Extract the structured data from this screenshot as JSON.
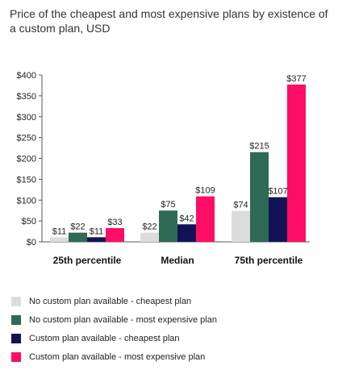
{
  "chart_data": {
    "type": "bar",
    "title": "Price of the cheapest and most expensive plans by existence of a custom plan, USD",
    "xlabel": "",
    "ylabel": "",
    "ylim": [
      0,
      400
    ],
    "y_ticks": [
      "$0",
      "$50",
      "$100",
      "$150",
      "$200",
      "$250",
      "$300",
      "$350",
      "$400"
    ],
    "y_tick_values": [
      0,
      50,
      100,
      150,
      200,
      250,
      300,
      350,
      400
    ],
    "categories": [
      "25th percentile",
      "Median",
      "75th percentile"
    ],
    "series": [
      {
        "name": "No custom plan available - cheapest plan",
        "color": "#dcdcdc",
        "values": [
          11,
          22,
          74
        ],
        "labels": [
          "$11",
          "$22",
          "$74"
        ]
      },
      {
        "name": "No custom plan available - most expensive plan",
        "color": "#2e6b57",
        "values": [
          22,
          75,
          215
        ],
        "labels": [
          "$22",
          "$75",
          "$215"
        ]
      },
      {
        "name": "Custom plan available - cheapest plan",
        "color": "#131256",
        "values": [
          11,
          42,
          107
        ],
        "labels": [
          "$11",
          "$42",
          "$107"
        ]
      },
      {
        "name": "Custom plan available - most expensive plan",
        "color": "#fe0d66",
        "values": [
          33,
          109,
          377
        ],
        "labels": [
          "$33",
          "$109",
          "$377"
        ]
      }
    ],
    "grid": false,
    "legend_position": "bottom-left"
  }
}
